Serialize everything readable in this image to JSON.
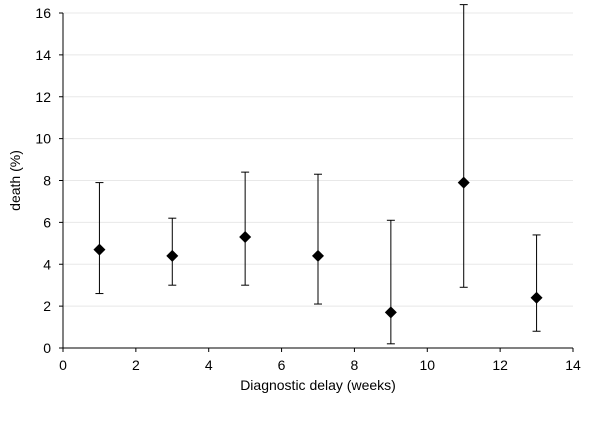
{
  "chart_data": {
    "type": "scatter",
    "title": "",
    "xlabel": "Diagnostic delay (weeks)",
    "ylabel": "death (%)",
    "xlim": [
      0,
      14
    ],
    "ylim": [
      0,
      16
    ],
    "xticks": [
      0,
      2,
      4,
      6,
      8,
      10,
      12,
      14
    ],
    "yticks": [
      0,
      2,
      4,
      6,
      8,
      10,
      12,
      14,
      16
    ],
    "grid": true,
    "legend": "none",
    "marker": "diamond",
    "colors": {
      "marker": "#000000",
      "errorbar": "#000000",
      "grid": "#e8e8e8",
      "axis": "#000000"
    },
    "series": [
      {
        "points": [
          {
            "x": 1,
            "y": 4.7,
            "low": 2.6,
            "high": 7.9
          },
          {
            "x": 3,
            "y": 4.4,
            "low": 3.0,
            "high": 6.2
          },
          {
            "x": 5,
            "y": 5.3,
            "low": 3.0,
            "high": 8.4
          },
          {
            "x": 7,
            "y": 4.4,
            "low": 2.1,
            "high": 8.3
          },
          {
            "x": 9,
            "y": 1.7,
            "low": 0.2,
            "high": 6.1
          },
          {
            "x": 11,
            "y": 7.9,
            "low": 2.9,
            "high": 16.4
          },
          {
            "x": 13,
            "y": 2.4,
            "low": 0.8,
            "high": 5.4
          }
        ]
      }
    ]
  }
}
